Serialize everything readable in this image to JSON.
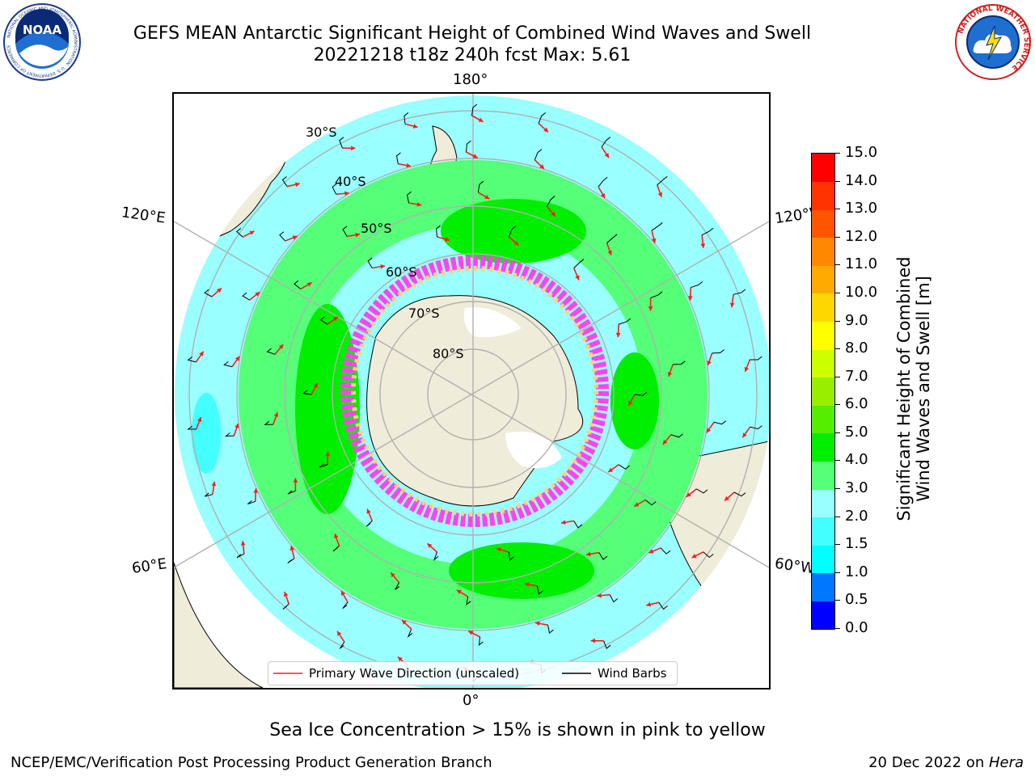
{
  "header": {
    "title_line1": "GEFS MEAN Antarctic Significant Height of Combined Wind Waves and Swell",
    "title_line2": "20221218 t18z 240h fcst   Max: 5.61",
    "noaa_logo_text": "NOAA",
    "noaa_ring_text": "NATIONAL OCEANIC AND ATMOSPHERIC ADMINISTRATION · U.S. DEPARTMENT OF COMMERCE",
    "nws_ring_text": "NATIONAL WEATHER SERVICE"
  },
  "map": {
    "longitude_labels": {
      "top": "180°",
      "bottom": "0°",
      "upper_left": "120°E",
      "lower_left": "60°E",
      "upper_right": "120°W",
      "lower_right": "60°W"
    },
    "latitude_labels": [
      "30°S",
      "40°S",
      "50°S",
      "60°S",
      "70°S",
      "80°S"
    ],
    "legend": {
      "wave_direction": "Primary Wave Direction (unscaled)",
      "wind_barbs": "Wind Barbs"
    },
    "colors": {
      "land": "#efecd9",
      "sea_ice_pink": "#ff44ee",
      "arrow": "#ff1a1a",
      "grid": "#b0b0b0"
    }
  },
  "colorbar": {
    "label_line1": "Significant Height of Combined",
    "label_line2": "Wind Waves and Swell [m]",
    "ticks": [
      "0.0",
      "0.5",
      "1.0",
      "1.5",
      "2.0",
      "3.0",
      "4.0",
      "5.0",
      "6.0",
      "7.0",
      "8.0",
      "9.0",
      "10.0",
      "11.0",
      "12.0",
      "13.0",
      "14.0",
      "15.0"
    ],
    "colors": [
      "#0000ff",
      "#0077ff",
      "#00ffff",
      "#44ffff",
      "#99ffff",
      "#55ff77",
      "#00ee00",
      "#55ee00",
      "#99ee00",
      "#ccff00",
      "#ffff00",
      "#ffd700",
      "#ffaa00",
      "#ff8800",
      "#ff5500",
      "#ff3300",
      "#ff0000"
    ]
  },
  "footer": {
    "note": "Sea Ice Concentration > 15% is shown in pink to yellow",
    "left": "NCEP/EMC/Verification Post Processing Product Generation Branch",
    "date": "20 Dec 2022 on ",
    "host": "Hera"
  }
}
